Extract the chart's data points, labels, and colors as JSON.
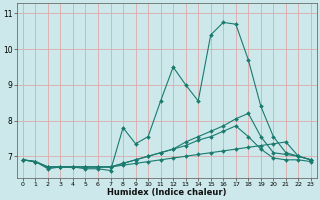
{
  "xlabel": "Humidex (Indice chaleur)",
  "x": [
    0,
    1,
    2,
    3,
    4,
    5,
    6,
    7,
    8,
    9,
    10,
    11,
    12,
    13,
    14,
    15,
    16,
    17,
    18,
    19,
    20,
    21,
    22,
    23
  ],
  "line1": [
    6.9,
    6.85,
    6.65,
    6.7,
    6.7,
    6.65,
    6.65,
    6.6,
    7.8,
    7.35,
    7.55,
    8.55,
    9.5,
    9.0,
    8.55,
    10.4,
    10.75,
    10.7,
    9.7,
    8.4,
    7.55,
    7.1,
    7.0,
    6.9
  ],
  "line2": [
    6.9,
    6.85,
    6.7,
    6.7,
    6.7,
    6.7,
    6.7,
    6.7,
    6.8,
    6.9,
    7.0,
    7.1,
    7.2,
    7.3,
    7.45,
    7.55,
    7.7,
    7.85,
    7.55,
    7.2,
    6.95,
    6.9,
    6.9,
    6.85
  ],
  "line3": [
    6.9,
    6.85,
    6.7,
    6.7,
    6.7,
    6.7,
    6.7,
    6.7,
    6.8,
    6.9,
    7.0,
    7.1,
    7.2,
    7.4,
    7.55,
    7.7,
    7.85,
    8.05,
    8.2,
    7.55,
    7.1,
    7.05,
    7.0,
    6.9
  ],
  "line4": [
    6.9,
    6.85,
    6.7,
    6.7,
    6.7,
    6.7,
    6.7,
    6.7,
    6.75,
    6.8,
    6.85,
    6.9,
    6.95,
    7.0,
    7.05,
    7.1,
    7.15,
    7.2,
    7.25,
    7.3,
    7.35,
    7.4,
    7.0,
    6.9
  ],
  "bg_color": "#cce8ea",
  "grid_color": "#ddaaaa",
  "line_color": "#1a7a6e",
  "ylim": [
    6.4,
    11.3
  ],
  "xlim": [
    -0.5,
    23.5
  ],
  "yticks": [
    7,
    8,
    9,
    10,
    11
  ],
  "xticks": [
    0,
    1,
    2,
    3,
    4,
    5,
    6,
    7,
    8,
    9,
    10,
    11,
    12,
    13,
    14,
    15,
    16,
    17,
    18,
    19,
    20,
    21,
    22,
    23
  ]
}
